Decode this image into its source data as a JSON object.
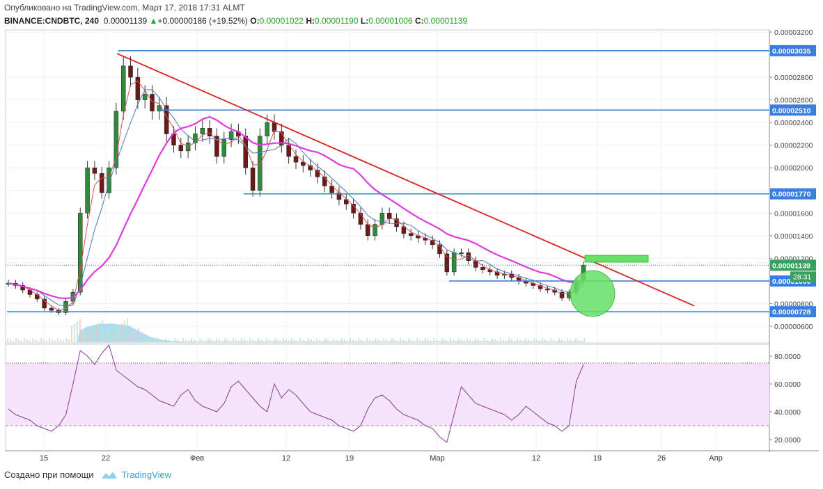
{
  "header": {
    "published": "Опубликовано на TradingView.com, Март 17, 2018 17:31 ALMT",
    "symbol": "BINANCE:CNDBTC, 240",
    "last": "0.00001139",
    "change": "+0.00000186 (+19.52%)",
    "o_label": "O:",
    "o_value": "0.00001022",
    "h_label": "H:",
    "h_value": "0.00001190",
    "l_label": "L:",
    "l_value": "0.00001006",
    "c_label": "C:",
    "c_value": "0.00001139"
  },
  "footer": {
    "created_with": "Создано при помощи",
    "brand": "TradingView"
  },
  "colors": {
    "candle_up": "#2e8b3a",
    "candle_down": "#6b1a1a",
    "ma_magenta": "#e03ae0",
    "ma_blue": "#4a78b8",
    "ma_red": "#e05050",
    "hline": "#3f7fd6",
    "trendline": "#e01e1e",
    "rsi": "#8a3a9a",
    "rsi_band": "#f5e4fa",
    "green_zone": "#66e066",
    "volume": "#7cc6ea"
  },
  "chart_data": [
    {
      "type": "candlestick",
      "title": "BINANCE:CNDBTC, 240",
      "x_ticks": [
        "15",
        "22",
        "Фев",
        "12",
        "19",
        "Мар",
        "12",
        "19",
        "26",
        "Апр"
      ],
      "y_ticks": [
        "0.00000600",
        "0.00000800",
        "0.00001000",
        "0.00001200",
        "0.00001400",
        "0.00001600",
        "0.00001800",
        "0.00002000",
        "0.00002200",
        "0.00002400",
        "0.00002600",
        "0.00002800",
        "0.00003200"
      ],
      "ylim": [
        5.3e-06,
        3.25e-05
      ],
      "grid": true,
      "horizontal_levels": [
        {
          "value": 3.035e-05,
          "label": "0.00003035"
        },
        {
          "value": 2.51e-05,
          "label": "0.00002510"
        },
        {
          "value": 1.77e-05,
          "label": "0.00001770"
        },
        {
          "value": 1e-05,
          "label": "0.00001000"
        },
        {
          "value": 7.28e-06,
          "label": "0.00000728"
        }
      ],
      "last_price": {
        "value": 1.139e-05,
        "label": "0.00001139"
      },
      "countdown": "28:31",
      "trendline": [
        {
          "date": "Jan 23",
          "y": 3.01e-05
        },
        {
          "date": "Mar 29",
          "y": 7.8e-06
        }
      ],
      "series_close": [
        9.8e-06,
        9.6e-06,
        9.2e-06,
        8.8e-06,
        8.4e-06,
        7.6e-06,
        7.4e-06,
        7.2e-06,
        8.2e-06,
        9e-06,
        1.6e-05,
        2e-05,
        1.95e-05,
        1.78e-05,
        2e-05,
        2.5e-05,
        2.9e-05,
        2.8e-05,
        2.6e-05,
        2.65e-05,
        2.5e-05,
        2.55e-05,
        2.3e-05,
        2.2e-05,
        2.15e-05,
        2.22e-05,
        2.3e-05,
        2.35e-05,
        2.28e-05,
        2.1e-05,
        2.25e-05,
        2.32e-05,
        2.28e-05,
        2e-05,
        1.8e-05,
        2.28e-05,
        2.4e-05,
        2.32e-05,
        2.2e-05,
        2.1e-05,
        2.05e-05,
        2.02e-05,
        1.98e-05,
        1.92e-05,
        1.84e-05,
        1.78e-05,
        1.72e-05,
        1.68e-05,
        1.6e-05,
        1.5e-05,
        1.4e-05,
        1.5e-05,
        1.6e-05,
        1.55e-05,
        1.48e-05,
        1.42e-05,
        1.4e-05,
        1.38e-05,
        1.36e-05,
        1.32e-05,
        1.24e-05,
        1.08e-05,
        1.25e-05,
        1.25e-05,
        1.18e-05,
        1.12e-05,
        1.1e-05,
        1.08e-05,
        1.05e-05,
        1.06e-05,
        1.03e-05,
        1e-05,
        9.8e-06,
        9.6e-06,
        9.3e-06,
        9.2e-06,
        9e-06,
        8.5e-06,
        9e-06,
        1e-05,
        1.14e-05
      ]
    },
    {
      "type": "line",
      "title": "RSI",
      "y_ticks": [
        "20.0000",
        "40.0000",
        "60.0000",
        "80.0000"
      ],
      "ylim": [
        10,
        88
      ],
      "overbought": 75,
      "oversold": 30,
      "values": [
        42,
        38,
        36,
        34,
        30,
        28,
        26,
        30,
        38,
        60,
        84,
        80,
        74,
        82,
        88,
        70,
        66,
        62,
        58,
        56,
        52,
        48,
        46,
        44,
        52,
        56,
        48,
        44,
        42,
        40,
        46,
        58,
        62,
        56,
        50,
        44,
        40,
        60,
        50,
        56,
        52,
        46,
        40,
        38,
        36,
        34,
        30,
        28,
        26,
        30,
        42,
        50,
        52,
        48,
        42,
        38,
        36,
        34,
        30,
        28,
        22,
        18,
        38,
        58,
        52,
        46,
        44,
        42,
        40,
        38,
        34,
        38,
        44,
        40,
        36,
        32,
        30,
        26,
        30,
        62,
        74
      ]
    }
  ]
}
